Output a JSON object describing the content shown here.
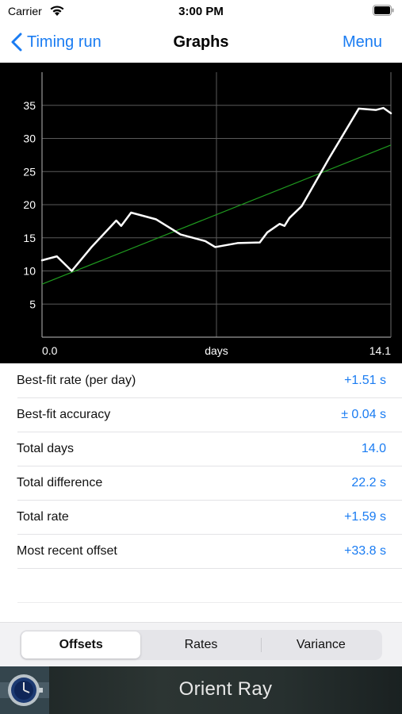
{
  "status_bar": {
    "carrier": "Carrier",
    "time": "3:00 PM"
  },
  "nav": {
    "back_label": "Timing run",
    "title": "Graphs",
    "menu_label": "Menu"
  },
  "chart_data": {
    "type": "line",
    "xlim": [
      0.0,
      14.1
    ],
    "ylim": [
      0,
      40
    ],
    "x_tick_labels": [
      "0.0",
      "14.1"
    ],
    "xlabel": "days",
    "y_ticks": [
      5,
      10,
      15,
      20,
      25,
      30,
      35
    ],
    "grid": true,
    "colors": {
      "background": "#000000",
      "grid": "#5a5a5a",
      "series": "#ffffff",
      "fit": "#1f9a1f"
    },
    "series": [
      {
        "x": [
          0.0,
          0.6,
          1.2,
          2.0,
          3.0,
          3.2,
          3.6,
          4.6,
          5.6,
          6.6,
          7.0,
          7.9,
          8.8,
          9.1,
          9.6,
          9.8,
          10.0,
          10.5,
          11.6,
          12.8,
          13.5,
          13.8,
          14.1
        ],
        "values": [
          11.6,
          12.2,
          10.0,
          13.6,
          17.6,
          16.8,
          18.8,
          17.8,
          15.5,
          14.5,
          13.6,
          14.2,
          14.3,
          15.8,
          17.1,
          16.8,
          18.0,
          19.8,
          27.0,
          34.5,
          34.3,
          34.6,
          33.8
        ]
      }
    ],
    "fit_line": {
      "x": [
        0.0,
        14.1
      ],
      "values": [
        8.0,
        29.0
      ]
    }
  },
  "stats": [
    {
      "label": "Best-fit rate (per day)",
      "value": "+1.51 s"
    },
    {
      "label": "Best-fit accuracy",
      "value": "± 0.04 s"
    },
    {
      "label": "Total days",
      "value": "14.0"
    },
    {
      "label": "Total difference",
      "value": "22.2 s"
    },
    {
      "label": "Total rate",
      "value": "+1.59 s"
    },
    {
      "label": "Most recent offset",
      "value": "+33.8 s"
    }
  ],
  "segments": {
    "items": [
      "Offsets",
      "Rates",
      "Variance"
    ],
    "selected": 0
  },
  "footer": {
    "watch_name": "Orient Ray"
  },
  "icons": {
    "back": "chevron-left-icon",
    "wifi": "wifi-icon",
    "battery": "battery-icon",
    "watch": "watch-thumbnail"
  }
}
